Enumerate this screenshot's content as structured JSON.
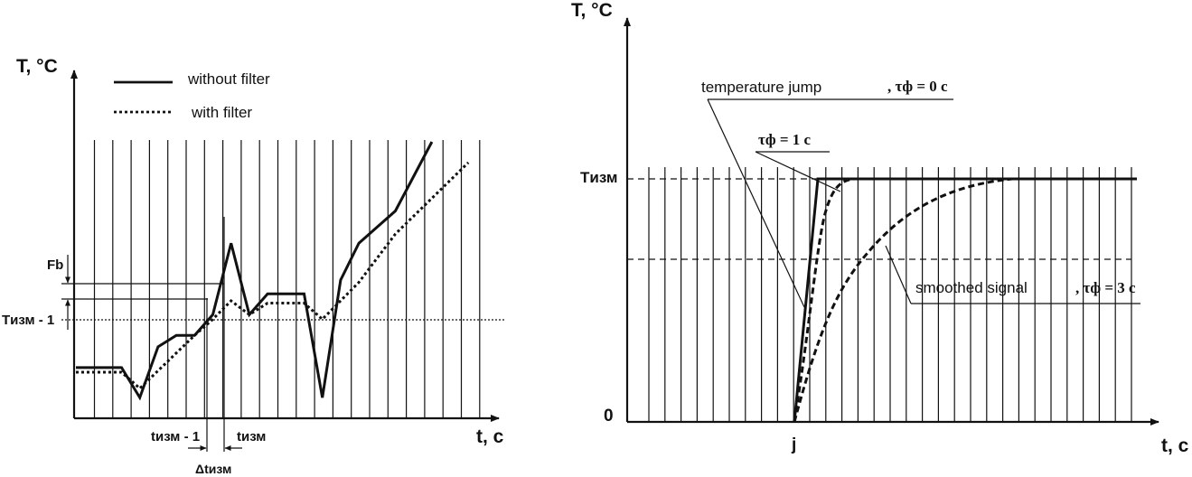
{
  "left_diagram": {
    "y_axis_label": "T, °C",
    "x_axis_label": "t, c",
    "legend": {
      "without_filter": "without filter",
      "with_filter": "with filter"
    },
    "labels": {
      "fb": "Fb",
      "t_izm_prev": "Tизм - 1",
      "t_prev": "tизм - 1",
      "t_cur": "tизм",
      "delta_t": "Δtизм"
    },
    "signal_without_filter": [
      [
        0,
        2.2
      ],
      [
        2.5,
        2.2
      ],
      [
        3.5,
        0.9
      ],
      [
        4.5,
        3.1
      ],
      [
        5.5,
        3.6
      ],
      [
        6.5,
        3.6
      ],
      [
        7.5,
        4.5
      ],
      [
        8.5,
        7.6
      ],
      [
        9.5,
        4.5
      ],
      [
        10.5,
        5.4
      ],
      [
        12.5,
        5.4
      ],
      [
        13.5,
        0.9
      ],
      [
        14.5,
        6.0
      ],
      [
        15.5,
        7.6
      ],
      [
        17.5,
        9.0
      ],
      [
        19.5,
        12.0
      ]
    ],
    "signal_with_filter": [
      [
        0,
        2.0
      ],
      [
        2.5,
        2.0
      ],
      [
        3.5,
        1.3
      ],
      [
        6.5,
        3.6
      ],
      [
        7.5,
        4.3
      ],
      [
        8.5,
        5.1
      ],
      [
        9.5,
        4.5
      ],
      [
        10.5,
        5.0
      ],
      [
        12.5,
        5.0
      ],
      [
        13.5,
        4.3
      ],
      [
        15.5,
        5.9
      ],
      [
        17.5,
        8.0
      ],
      [
        21.5,
        11.1
      ]
    ]
  },
  "right_diagram": {
    "y_axis_label": "T, °C",
    "x_axis_label": "t, c",
    "y_value_label": "Tизм",
    "origin_label": "0",
    "x_value_label": "j",
    "annotations": {
      "jump_text": "temperature jump",
      "jump_tau": ", τф = 0 c",
      "tau1": "τф = 1 c",
      "smooth_text": "smoothed signal",
      "smooth_tau": ", τф = 3 c"
    }
  },
  "colors": {
    "ink": "#111111",
    "background": "#ffffff"
  }
}
